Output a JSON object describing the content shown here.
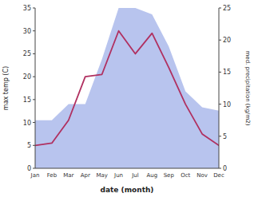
{
  "chart_data": {
    "type": "line",
    "xlabel": "date (month)",
    "ylabel": "max temp (C)",
    "y2label": "med. precipitation (kg/m2)",
    "categories": [
      "Jan",
      "Feb",
      "Mar",
      "Apr",
      "May",
      "Jun",
      "Jul",
      "Aug",
      "Sep",
      "Oct",
      "Nov",
      "Dec"
    ],
    "series": [
      {
        "type": "area",
        "axis": "y2",
        "color": "#b8c4ee",
        "values": [
          7.5,
          7.5,
          10.0,
          10.0,
          17.0,
          25.0,
          25.0,
          24.0,
          19.0,
          12.0,
          9.5,
          9.0
        ]
      },
      {
        "type": "line",
        "color": "#b03060",
        "values": [
          5.0,
          5.5,
          10.5,
          20.0,
          20.5,
          30.0,
          25.0,
          29.5,
          22.0,
          14.0,
          7.5,
          5.0
        ]
      }
    ],
    "ylim": [
      0,
      35
    ],
    "yticks": [
      0,
      5,
      10,
      15,
      20,
      25,
      30,
      35
    ],
    "y2lim": [
      0,
      25
    ],
    "y2ticks": [
      0,
      5,
      10,
      15,
      20,
      25
    ],
    "grid": false
  }
}
